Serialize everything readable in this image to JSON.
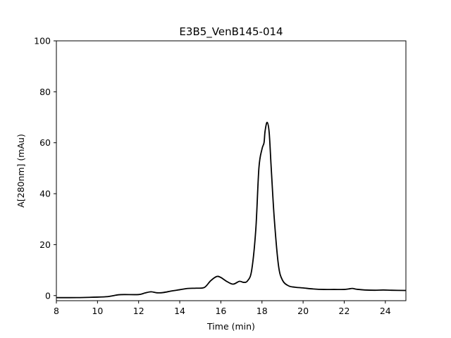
{
  "chart_data": {
    "type": "line",
    "title": "E3B5_VenB145-014",
    "xlabel": "Time (min)",
    "ylabel": "A[280nm] (mAu)",
    "xlim": [
      8,
      25
    ],
    "ylim": [
      -2,
      100
    ],
    "xticks": [
      8,
      10,
      12,
      14,
      16,
      18,
      20,
      22,
      24
    ],
    "yticks": [
      0,
      20,
      40,
      60,
      80,
      100
    ],
    "grid": false,
    "line_color": "#000000",
    "series": [
      {
        "x": [
          8.0,
          9.0,
          10.0,
          10.5,
          10.8,
          11.0,
          11.3,
          12.0,
          12.3,
          12.6,
          12.9,
          13.2,
          13.6,
          14.0,
          14.4,
          14.8,
          15.2,
          15.5,
          15.8,
          16.0,
          16.3,
          16.6,
          16.9,
          17.1,
          17.3,
          17.5,
          17.7,
          17.85,
          18.0,
          18.1,
          18.15,
          18.25,
          18.35,
          18.45,
          18.6,
          18.8,
          19.0,
          19.3,
          19.6,
          20.0,
          20.5,
          21.0,
          21.5,
          22.0,
          22.2,
          22.4,
          22.6,
          23.0,
          23.5,
          23.9,
          24.3,
          25.0
        ],
        "y": [
          -0.8,
          -0.8,
          -0.6,
          -0.4,
          0.0,
          0.3,
          0.4,
          0.4,
          1.0,
          1.5,
          1.1,
          1.2,
          1.8,
          2.3,
          2.8,
          2.9,
          3.2,
          5.8,
          7.5,
          7.1,
          5.5,
          4.5,
          5.6,
          5.2,
          5.8,
          10.0,
          26.0,
          50.0,
          57.5,
          60.0,
          64.5,
          68.0,
          64.0,
          50.0,
          30.0,
          12.0,
          6.0,
          3.8,
          3.3,
          3.0,
          2.6,
          2.4,
          2.4,
          2.4,
          2.6,
          2.8,
          2.5,
          2.2,
          2.1,
          2.2,
          2.1,
          2.0
        ]
      }
    ]
  }
}
